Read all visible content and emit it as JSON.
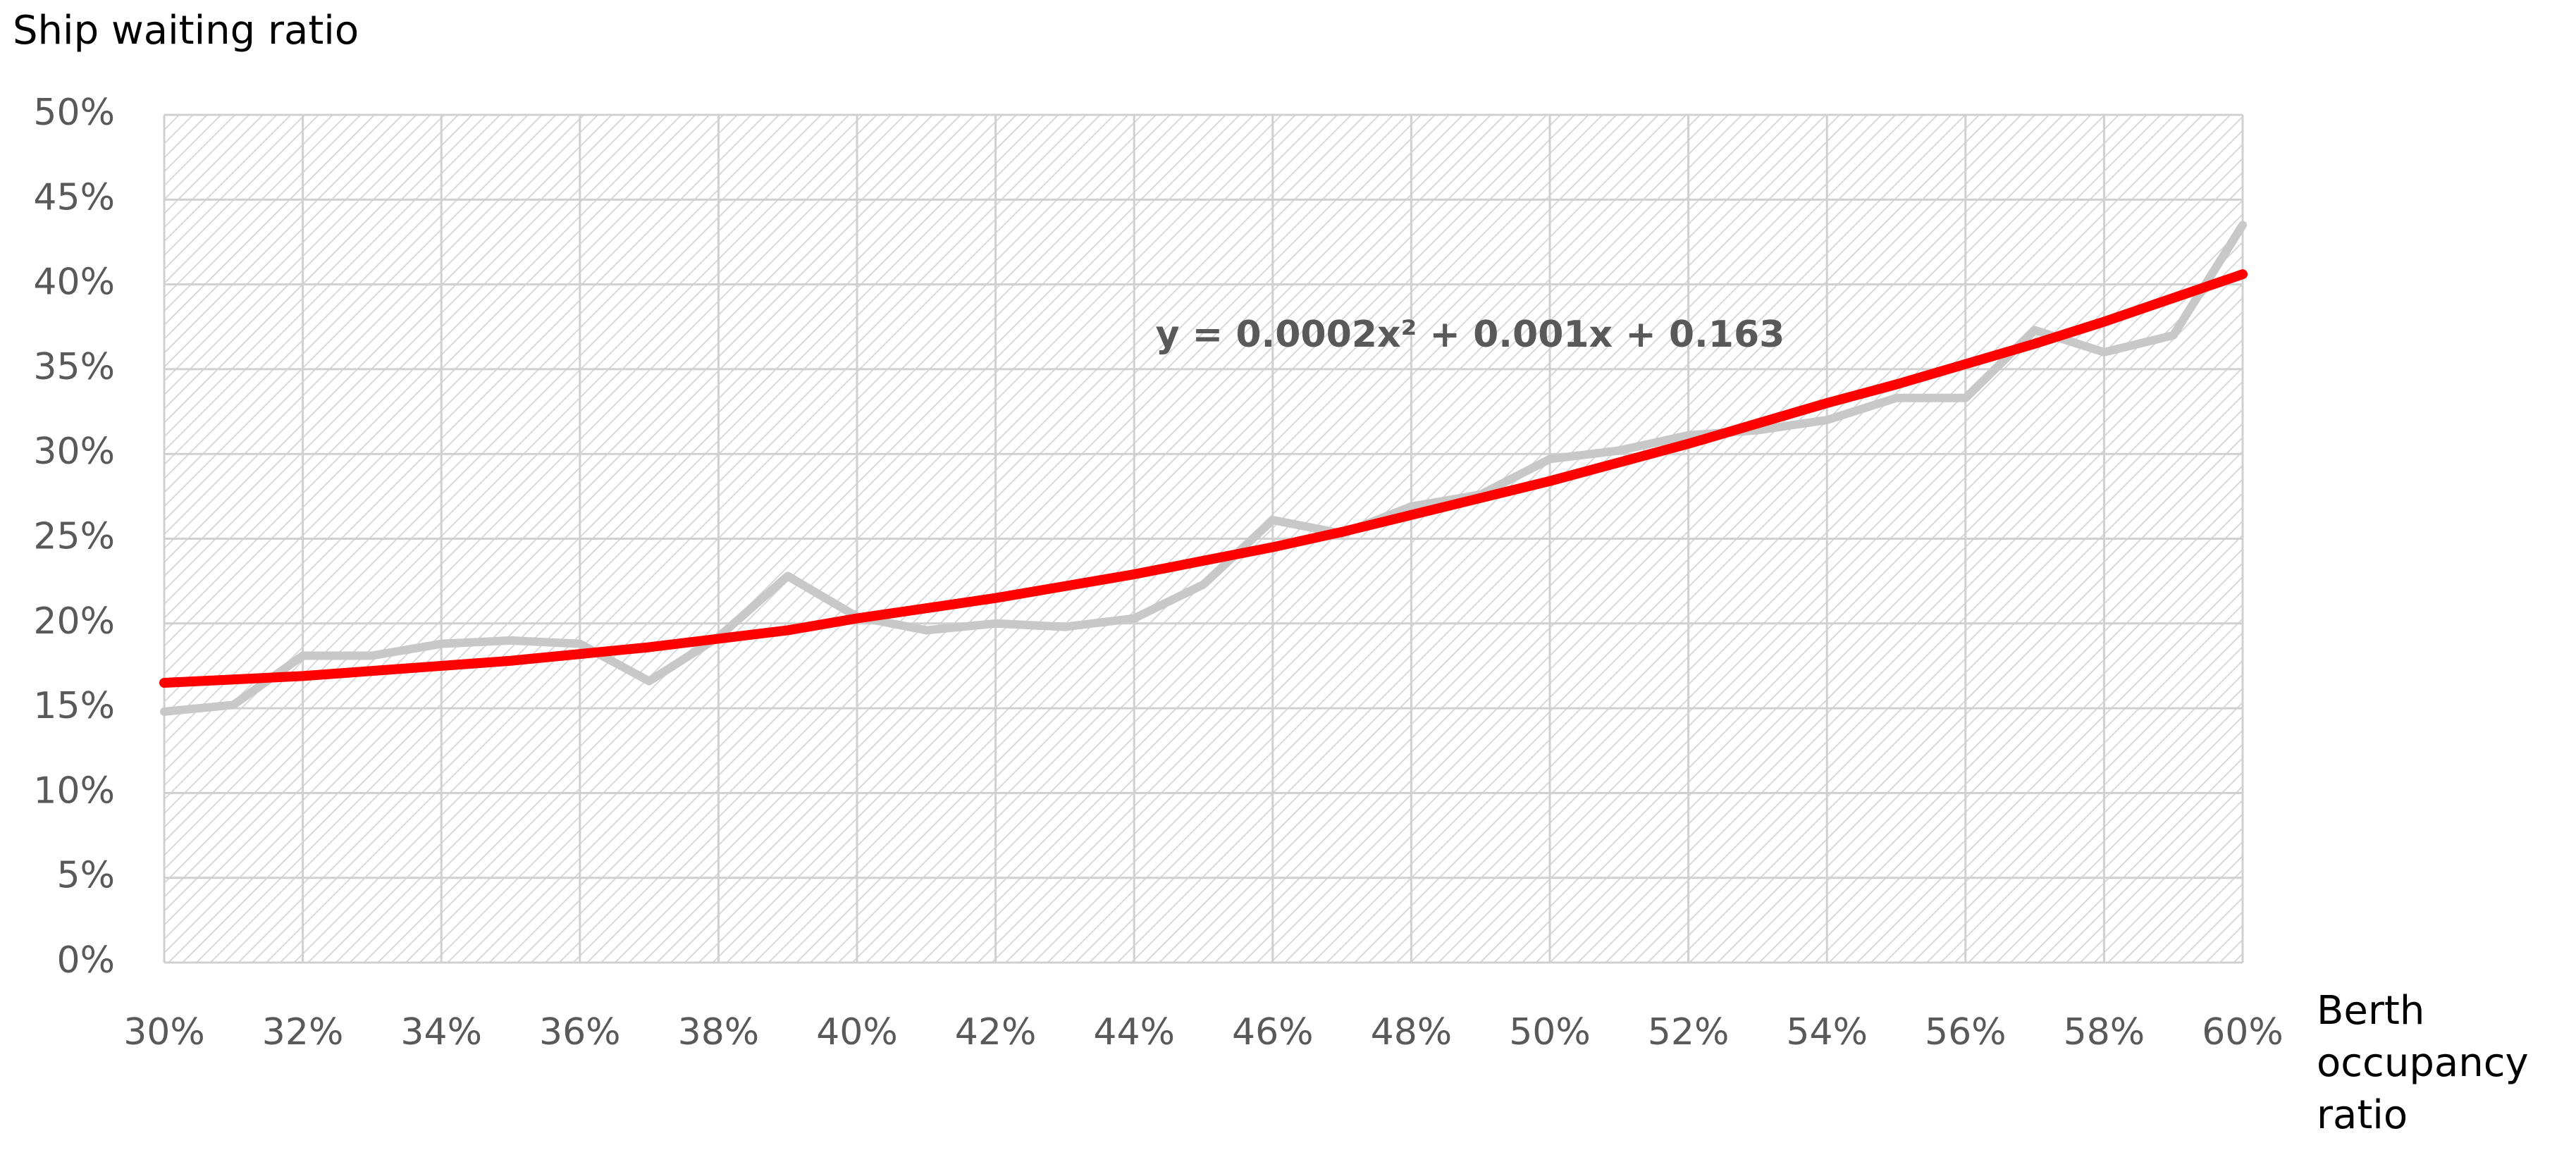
{
  "chart_data": {
    "type": "line",
    "y_label": "Ship waiting ratio",
    "x_label": [
      "Berth",
      "occupancy",
      "ratio"
    ],
    "annotation": "y = 0.0002x² + 0.001x + 0.163",
    "x": [
      30,
      31,
      32,
      33,
      34,
      35,
      36,
      37,
      38,
      39,
      40,
      41,
      42,
      43,
      44,
      45,
      46,
      47,
      48,
      49,
      50,
      51,
      52,
      53,
      54,
      55,
      56,
      57,
      58,
      59,
      60
    ],
    "series": [
      {
        "color": "#c8c8c8",
        "values": [
          14.8,
          15.2,
          18.1,
          18.1,
          18.8,
          19.0,
          18.8,
          16.6,
          19.2,
          22.8,
          20.4,
          19.6,
          20.0,
          19.8,
          20.3,
          22.3,
          26.1,
          25.3,
          26.9,
          27.6,
          29.7,
          30.2,
          31.1,
          31.4,
          32.0,
          33.3,
          33.3,
          37.3,
          36.0,
          37.0,
          43.5
        ]
      },
      {
        "color": "#ff0000",
        "values": [
          16.5,
          16.7,
          16.9,
          17.2,
          17.5,
          17.8,
          18.2,
          18.6,
          19.1,
          19.6,
          20.3,
          20.9,
          21.5,
          22.2,
          22.9,
          23.7,
          24.5,
          25.4,
          26.4,
          27.4,
          28.4,
          29.5,
          30.6,
          31.8,
          33.0,
          34.1,
          35.3,
          36.5,
          37.8,
          39.2,
          40.6
        ]
      }
    ],
    "xlim": [
      30,
      60
    ],
    "xticks": [
      {
        "value": 30,
        "label": "30%"
      },
      {
        "value": 32,
        "label": "32%"
      },
      {
        "value": 34,
        "label": "34%"
      },
      {
        "value": 36,
        "label": "36%"
      },
      {
        "value": 38,
        "label": "38%"
      },
      {
        "value": 40,
        "label": "40%"
      },
      {
        "value": 42,
        "label": "42%"
      },
      {
        "value": 44,
        "label": "44%"
      },
      {
        "value": 46,
        "label": "46%"
      },
      {
        "value": 48,
        "label": "48%"
      },
      {
        "value": 50,
        "label": "50%"
      },
      {
        "value": 52,
        "label": "52%"
      },
      {
        "value": 54,
        "label": "54%"
      },
      {
        "value": 56,
        "label": "56%"
      },
      {
        "value": 58,
        "label": "58%"
      },
      {
        "value": 60,
        "label": "60%"
      }
    ],
    "ylim": [
      0,
      50
    ],
    "yticks": [
      {
        "value": 0,
        "label": "0%"
      },
      {
        "value": 5,
        "label": "5%"
      },
      {
        "value": 10,
        "label": "10%"
      },
      {
        "value": 15,
        "label": "15%"
      },
      {
        "value": 20,
        "label": "20%"
      },
      {
        "value": 25,
        "label": "25%"
      },
      {
        "value": 30,
        "label": "30%"
      },
      {
        "value": 35,
        "label": "35%"
      },
      {
        "value": 40,
        "label": "40%"
      },
      {
        "value": 45,
        "label": "45%"
      },
      {
        "value": 50,
        "label": "50%"
      }
    ],
    "grid": true
  }
}
